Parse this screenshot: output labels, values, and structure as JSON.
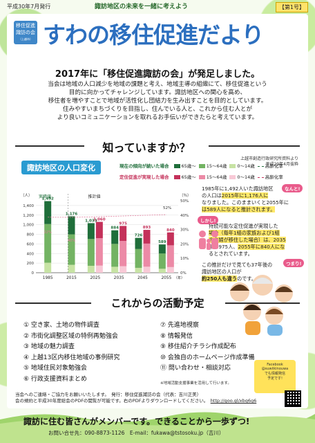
{
  "header": {
    "date": "平成30年7月発行",
    "tagline": "諏訪地区の未来を一緒に考えよう",
    "issue": "【第1号】"
  },
  "logo": {
    "line1": "移住促進",
    "line2": "諏訪の会",
    "sub": "（上越市）"
  },
  "title": "すわの移住促進だより",
  "headline": "2017年に「移住促進諏訪の会」が発足しました。",
  "intro": [
    "当会は地域の人口減少を地域の課題と考え、地域主導の組織にて、移住促進という",
    "目的に向かってチャレンジしています。諏訪地区への関心を高め、",
    "移住者を増やすことで地域が活性化し団結力を生み出すことを目的としています。",
    "住みやすいまちづくりを目指し、住んでいる人と、これから住む人とが",
    "より良いコミュニケーションを取れるお手伝いができたらと考えています。"
  ],
  "section1": {
    "title": "知っていますか？",
    "source_line1": "上越市創造行政研究所資料より",
    "source_line2": "平成29年4月抜粋"
  },
  "chart_header": {
    "title": "諏訪地区の人口変化",
    "legend_current_label": "現在の傾向が続いた場合",
    "legend_target_label": "定住促進が実現した場合",
    "age_groups": [
      "65歳〜",
      "15〜64歳",
      "0〜14歳",
      "高齢化率"
    ],
    "colors": {
      "current_65": "#1f6e3a",
      "current_15": "#73b363",
      "current_0": "#c7e3a4",
      "target_65": "#c4315a",
      "target_15": "#ec8aa6",
      "target_0": "#f8c9d6",
      "rate_line": "#e07a9b"
    },
    "unit_left": "（人）",
    "unit_right": "（％）",
    "actual_label": "実績値",
    "estimate_label": "推計値",
    "year_suffix": "（年）"
  },
  "chart_data": {
    "type": "bar",
    "title": "諏訪地区の人口変化",
    "categories": [
      "1985",
      "2015",
      "2025",
      "2035",
      "2045",
      "2055"
    ],
    "ylim": [
      0,
      1500
    ],
    "yticks": [
      0,
      200,
      400,
      600,
      800,
      1000,
      1200,
      1400
    ],
    "y2lim": [
      0,
      50
    ],
    "y2ticks": [
      "0%",
      "10%",
      "20%",
      "30%",
      "40%",
      "50%"
    ],
    "series": [
      {
        "name": "現在の傾向が続いた場合",
        "totals": [
          1492,
          1176,
          1033,
          884,
          726,
          589
        ]
      },
      {
        "name": "定住促進が実現した場合",
        "totals": [
          null,
          null,
          1060,
          975,
          893,
          840
        ]
      }
    ],
    "labels": {
      "1985": [
        "1,492",
        "22%"
      ],
      "2015": [
        "1,176",
        "40%"
      ],
      "2025": [
        "1,033",
        "1,060"
      ],
      "2035": [
        "884",
        "975"
      ],
      "2045": [
        "726",
        "893"
      ],
      "2055": [
        "589",
        "840"
      ]
    },
    "rate_current_label": "52%"
  },
  "notes": {
    "p1_a": "1985年に1,492人いた諏訪地区",
    "p1_b": "の人口は",
    "p1_c": "2015年に1,176人に",
    "p1_d": "なりました。このままいくと2055年に",
    "p1_e": "は589人になると推計されます。",
    "bubble1": "なんと!",
    "bubble2": "しかし!",
    "p2_a": "持続可能な定住促進が実現した",
    "p2_b": "場合（毎年1組の家族および1組",
    "p2_c": "の夫婦が移住した場合）は、2035",
    "p2_d": "年に975人、",
    "p2_e": "2055年に840人にな",
    "p2_f": "るとされています。",
    "bubble3": "つまり!",
    "p3_a": "この推計だけで見ても37年後の",
    "p3_b": "諏訪地区の人口が",
    "p3_c": "約250人も違う",
    "p3_d": "のです。"
  },
  "activities": {
    "title": "これからの活動予定",
    "left": [
      "① 空き家、土地の物件調査",
      "② 市街化調整区域の特例再勉強会",
      "③ 地域の魅力調査",
      "④ 上越13区内移住地域の事例研究",
      "⑤ 地域住民対象勉強会",
      "⑥ 行政支援資料まとめ"
    ],
    "right": [
      "⑦ 先進地視察",
      "⑧ 情報発信",
      "⑨ 移住紹介チラシ作成配布",
      "⑩ 会独自のホームページ作成準備",
      "⑪ 問い合わせ・相談対応"
    ],
    "note": "※地域活動支援事業を活用して行います。"
  },
  "facebook": {
    "line1": "Facebook",
    "line2": "@suwiikinouwa",
    "line3": "でも情報発信",
    "line4": "予定です!"
  },
  "footer": {
    "line1": "当会へのご連絡・ご協力をお願いいたします。　発行：移住促進諏訪の会（代表：吉川正美）",
    "line2": "会の規約と平成30年度総会のPDFの閲覧が可能です。右のPDFよりダウンロードしてください。",
    "url": "http://goo.gl/xbq6g6",
    "banner": "諏訪に住む皆さんがメンバーです。できることから一歩ずつ!",
    "contact": "お問い合せ先：090-8873-1126　E-mail：fukawa@tstosoku.jp（吉川）"
  }
}
